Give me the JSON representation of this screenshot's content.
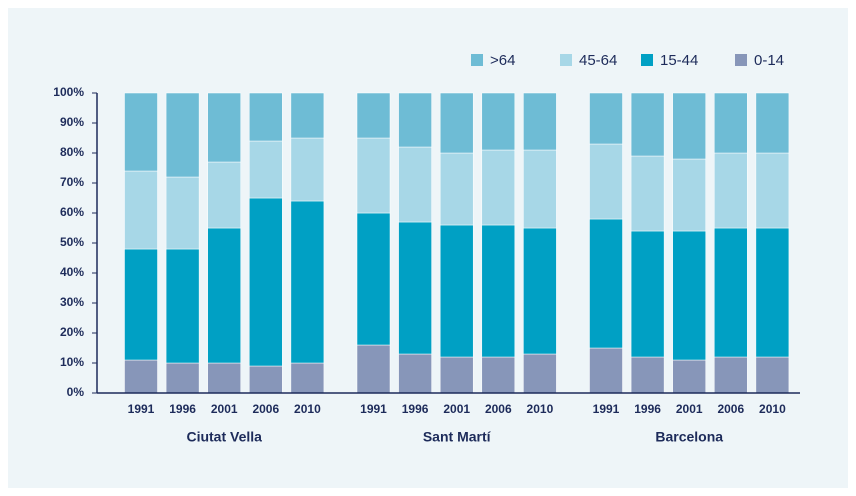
{
  "chart_data": {
    "type": "stacked_bar",
    "groups": [
      {
        "name": "Ciutat Vella",
        "categories": [
          "1991",
          "1996",
          "2001",
          "2006",
          "2010"
        ]
      },
      {
        "name": "Sant Martí",
        "categories": [
          "1991",
          "1996",
          "2001",
          "2006",
          "2010"
        ]
      },
      {
        "name": "Barcelona",
        "categories": [
          "1991",
          "1996",
          "2001",
          "2006",
          "2010"
        ]
      }
    ],
    "series": [
      {
        "name": "0-14",
        "color": "#8796b9",
        "values": [
          11,
          10,
          10,
          9,
          10,
          16,
          13,
          12,
          12,
          13,
          15,
          12,
          11,
          12,
          12
        ]
      },
      {
        "name": "15-44",
        "color": "#00a0c4",
        "values": [
          37,
          38,
          45,
          56,
          54,
          44,
          44,
          44,
          44,
          42,
          43,
          42,
          43,
          43,
          43
        ]
      },
      {
        "name": "45-64",
        "color": "#a7d7e7",
        "values": [
          26,
          24,
          22,
          19,
          21,
          25,
          25,
          24,
          25,
          26,
          25,
          25,
          24,
          25,
          25
        ]
      },
      {
        "name": ">64",
        "color": "#6ebcd5",
        "values": [
          26,
          28,
          23,
          16,
          15,
          15,
          18,
          20,
          19,
          19,
          17,
          21,
          22,
          20,
          20
        ]
      }
    ],
    "ylim": [
      0,
      100
    ],
    "yticks": [
      {
        "value": 0,
        "label": "0%"
      },
      {
        "value": 10,
        "label": "10%"
      },
      {
        "value": 20,
        "label": "20%"
      },
      {
        "value": 30,
        "label": "30%"
      },
      {
        "value": 40,
        "label": "40%"
      },
      {
        "value": 50,
        "label": "50%"
      },
      {
        "value": 60,
        "label": "60%"
      },
      {
        "value": 70,
        "label": "70%"
      },
      {
        "value": 80,
        "label": "80%"
      },
      {
        "value": 90,
        "label": "90%"
      },
      {
        "value": 100,
        "label": "100%"
      }
    ],
    "legend": "top-right"
  }
}
